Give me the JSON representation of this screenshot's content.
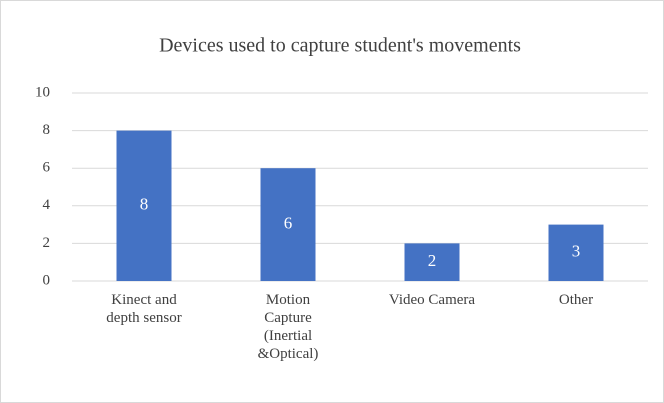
{
  "chart_data": {
    "type": "bar",
    "title": "Devices used to capture student's movements",
    "categories": [
      "Kinect and depth sensor",
      "Motion Capture (Inertial &Optical)",
      "Video Camera",
      "Other"
    ],
    "values": [
      8,
      6,
      2,
      3
    ],
    "color": "#4472c4",
    "ylim": [
      0,
      10
    ],
    "yticks": [
      0,
      2,
      4,
      6,
      8,
      10
    ],
    "grid": true,
    "data_labels": true
  }
}
